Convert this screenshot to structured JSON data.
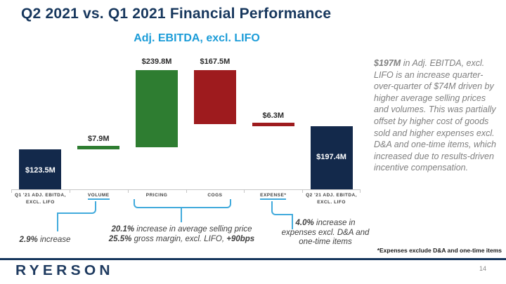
{
  "slide": {
    "title": "Q2 2021 vs. Q1 2021 Financial Performance",
    "footnote": "*Expenses exclude D&A and one-time items",
    "logo_text": "RYERSON",
    "page_number": "14"
  },
  "chart_data": {
    "type": "bar",
    "subtype": "waterfall",
    "title": "Adj. EBITDA, excl. LIFO",
    "unit": "$M",
    "categories": [
      "Q1 '21 ADJ. EBITDA,\nEXCL. LIFO",
      "VOLUME",
      "PRICING",
      "COGS",
      "EXPENSE*",
      "Q2 '21 ADJ. EBITDA,\nEXCL. LIFO"
    ],
    "values": [
      123.5,
      7.9,
      239.8,
      -167.5,
      -6.3,
      197.4
    ],
    "bar_labels": [
      "$123.5M",
      "$7.9M",
      "$239.8M",
      "$167.5M",
      "$6.3M",
      "$197.4M"
    ],
    "bar_roles": [
      "total",
      "increase",
      "increase",
      "decrease",
      "decrease",
      "total"
    ],
    "underlined_categories": [
      "VOLUME",
      "EXPENSE*"
    ],
    "colors": {
      "total": "#13294B",
      "increase": "#2E7D31",
      "decrease": "#9E1B1E",
      "connector": "#41AADC"
    },
    "ylim": [
      0,
      400
    ],
    "grid": false,
    "legend": false
  },
  "annotations": {
    "volume": {
      "bold": "2.9%",
      "text": " increase"
    },
    "pricing_line1": {
      "bold": "20.1%",
      "text": " increase in average selling price"
    },
    "pricing_line2": {
      "bold": "25.5%",
      "text": " gross margin, excl. LIFO, ",
      "bold2": "+90bps"
    },
    "expense": {
      "bold": "4.0%",
      "text": " increase in expenses excl. D&A and one-time items"
    }
  },
  "commentary": {
    "lead": "$197M",
    "body": " in Adj. EBITDA, excl. LIFO is an increase quarter-over-quarter of $74M driven by higher average selling prices and volumes. This was partially offset by higher cost of goods sold and higher expenses excl. D&A and one-time items, which increased due to results-driven incentive compensation."
  }
}
